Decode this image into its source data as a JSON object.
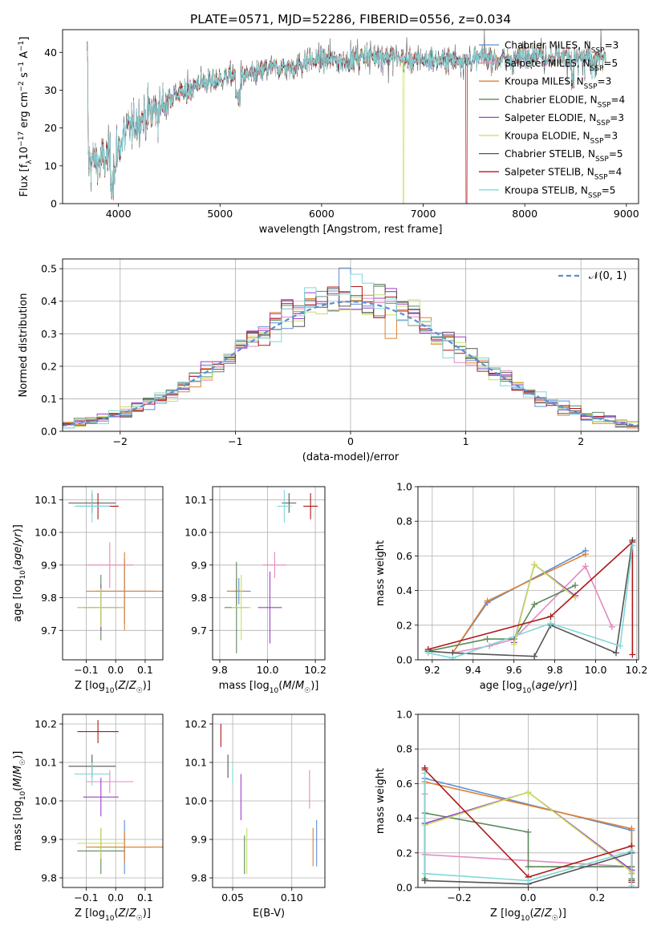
{
  "title": "PLATE=0571, MJD=52286, FIBERID=0556, z=0.034",
  "colors": {
    "chabrier_miles": "#5b8ed6",
    "salpeter_miles": "#e58ac0",
    "kroupa_miles": "#e08030",
    "chabrier_elodie": "#5a8a5a",
    "salpeter_elodie": "#9d3fc8",
    "kroupa_elodie": "#c8e060",
    "chabrier_stelib": "#555555",
    "salpeter_stelib": "#b01818",
    "kroupa_stelib": "#80d8d8",
    "gaussian": "#5b8ed6",
    "grid": "#b0b0b0"
  },
  "chart_data": [
    {
      "id": "spectrum",
      "type": "line",
      "title": "PLATE=0571, MJD=52286, FIBERID=0556, z=0.034",
      "xlabel": "wavelength [Angstrom, rest frame]",
      "ylabel": "Flux [f_λ10^-17 erg cm^-2 s^-1 A^-1]",
      "xlim": [
        3450,
        9120
      ],
      "ylim": [
        0,
        46
      ],
      "xticks": [
        4000,
        5000,
        6000,
        7000,
        8000,
        9000
      ],
      "yticks": [
        0,
        10,
        20,
        30,
        40
      ],
      "grid": false,
      "legend_position": "top-right",
      "legend": [
        {
          "label": "Chabrier MILES, N",
          "sub": "SSP",
          "suffix": "=3"
        },
        {
          "label": "Salpeter MILES, N",
          "sub": "SSP",
          "suffix": "=5"
        },
        {
          "label": "Kroupa MILES, N",
          "sub": "SSP",
          "suffix": "=3"
        },
        {
          "label": "Chabrier ELODIE, N",
          "sub": "SSP",
          "suffix": "=4"
        },
        {
          "label": "Salpeter ELODIE, N",
          "sub": "SSP",
          "suffix": "=3"
        },
        {
          "label": "Kroupa ELODIE, N",
          "sub": "SSP",
          "suffix": "=3"
        },
        {
          "label": "Chabrier STELIB, N",
          "sub": "SSP",
          "suffix": "=5"
        },
        {
          "label": "Salpeter STELIB, N",
          "sub": "SSP",
          "suffix": "=4"
        },
        {
          "label": "Kroupa STELIB, N",
          "sub": "SSP",
          "suffix": "=5"
        }
      ],
      "continuum": [
        [
          3700,
          12
        ],
        [
          3800,
          11
        ],
        [
          3900,
          12
        ],
        [
          4000,
          15
        ],
        [
          4100,
          20
        ],
        [
          4200,
          22
        ],
        [
          4300,
          24
        ],
        [
          4400,
          25
        ],
        [
          4500,
          28
        ],
        [
          4600,
          29
        ],
        [
          4700,
          30
        ],
        [
          4800,
          32
        ],
        [
          4900,
          32
        ],
        [
          5000,
          33
        ],
        [
          5100,
          34
        ],
        [
          5200,
          33
        ],
        [
          5300,
          34
        ],
        [
          5400,
          35
        ],
        [
          5500,
          36
        ],
        [
          5600,
          36
        ],
        [
          5700,
          36
        ],
        [
          5800,
          37
        ],
        [
          5900,
          38
        ],
        [
          6000,
          38
        ],
        [
          6100,
          38
        ],
        [
          6200,
          38
        ],
        [
          6300,
          38
        ],
        [
          6400,
          39
        ],
        [
          6500,
          39
        ],
        [
          6600,
          39
        ],
        [
          6700,
          39
        ],
        [
          6800,
          38
        ],
        [
          6900,
          38
        ],
        [
          7000,
          38
        ],
        [
          7100,
          38
        ],
        [
          7200,
          38
        ],
        [
          7300,
          38
        ],
        [
          7400,
          38
        ],
        [
          7500,
          38
        ],
        [
          7600,
          39
        ],
        [
          7700,
          38
        ],
        [
          7800,
          38
        ],
        [
          7900,
          38
        ],
        [
          8000,
          39
        ],
        [
          8100,
          40
        ],
        [
          8200,
          39
        ],
        [
          8300,
          39
        ],
        [
          8400,
          39
        ],
        [
          8500,
          39
        ],
        [
          8600,
          39
        ],
        [
          8700,
          38
        ],
        [
          8800,
          38
        ]
      ],
      "dropouts": [
        {
          "series": "Kroupa ELODIE",
          "at": 6800
        },
        {
          "series": "Salpeter STELIB",
          "at": 7420
        }
      ]
    },
    {
      "id": "residual-histogram",
      "type": "bar",
      "xlabel": "(data-model)/error",
      "ylabel": "Normed distribution",
      "xlim": [
        -2.5,
        2.5
      ],
      "ylim": [
        0,
        0.53
      ],
      "xticks": [
        -2,
        -1,
        0,
        1,
        2
      ],
      "yticks": [
        0.0,
        0.1,
        0.2,
        0.3,
        0.4,
        0.5
      ],
      "grid": true,
      "legend_position": "top-right",
      "legend": [
        "𝒩(0, 1)"
      ],
      "gaussian": {
        "mean": 0,
        "sigma": 1
      }
    },
    {
      "id": "age-vs-z",
      "type": "scatter",
      "xlabel": "Z [log10(Z/Z☉)]",
      "ylabel": "age  [log10(age/yr)]",
      "xlim": [
        -0.18,
        0.16
      ],
      "ylim": [
        9.61,
        10.14
      ],
      "xticks": [
        -0.1,
        0.0,
        0.1
      ],
      "yticks": [
        9.7,
        9.8,
        9.9,
        10.0,
        10.1
      ],
      "grid": true,
      "points": [
        {
          "series": "chabrier_miles",
          "x": 0.03,
          "xerr": 0.1,
          "y": 9.82,
          "yerr": 0.1
        },
        {
          "series": "salpeter_miles",
          "x": -0.02,
          "xerr": 0.08,
          "y": 9.9,
          "yerr": 0.07
        },
        {
          "series": "kroupa_miles",
          "x": 0.03,
          "xerr": 0.13,
          "y": 9.82,
          "yerr": 0.12
        },
        {
          "series": "chabrier_elodie",
          "x": -0.05,
          "xerr": 0.08,
          "y": 9.77,
          "yerr": 0.1
        },
        {
          "series": "salpeter_elodie",
          "x": -0.05,
          "xerr": 0.06,
          "y": 9.77,
          "yerr": 0.07
        },
        {
          "series": "kroupa_elodie",
          "x": -0.05,
          "xerr": 0.08,
          "y": 9.77,
          "yerr": 0.06
        },
        {
          "series": "chabrier_stelib",
          "x": -0.08,
          "xerr": 0.08,
          "y": 10.09,
          "yerr": 0.03
        },
        {
          "series": "salpeter_stelib",
          "x": -0.06,
          "xerr": 0.07,
          "y": 10.08,
          "yerr": 0.04
        },
        {
          "series": "kroupa_stelib",
          "x": -0.08,
          "xerr": 0.06,
          "y": 10.08,
          "yerr": 0.05
        }
      ]
    },
    {
      "id": "age-vs-mass",
      "type": "scatter",
      "xlabel": "mass [log10(M/M☉)]",
      "ylabel": "",
      "xlim": [
        9.77,
        10.24
      ],
      "ylim": [
        9.61,
        10.14
      ],
      "xticks": [
        9.8,
        10.0,
        10.2
      ],
      "yticks": [
        9.7,
        9.8,
        9.9,
        10.0,
        10.1
      ],
      "grid": true,
      "points": [
        {
          "series": "chabrier_miles",
          "x": 9.88,
          "xerr": 0.05,
          "y": 9.82,
          "yerr": 0.04
        },
        {
          "series": "salpeter_miles",
          "x": 10.03,
          "xerr": 0.05,
          "y": 9.9,
          "yerr": 0.04
        },
        {
          "series": "kroupa_miles",
          "x": 9.87,
          "xerr": 0.04,
          "y": 9.82,
          "yerr": 0.04
        },
        {
          "series": "chabrier_elodie",
          "x": 9.87,
          "xerr": 0.05,
          "y": 9.77,
          "yerr": 0.14
        },
        {
          "series": "salpeter_elodie",
          "x": 10.01,
          "xerr": 0.05,
          "y": 9.77,
          "yerr": 0.11
        },
        {
          "series": "kroupa_elodie",
          "x": 9.89,
          "xerr": 0.04,
          "y": 9.77,
          "yerr": 0.1
        },
        {
          "series": "chabrier_stelib",
          "x": 10.09,
          "xerr": 0.03,
          "y": 10.09,
          "yerr": 0.03
        },
        {
          "series": "salpeter_stelib",
          "x": 10.18,
          "xerr": 0.03,
          "y": 10.08,
          "yerr": 0.04
        },
        {
          "series": "kroupa_stelib",
          "x": 10.07,
          "xerr": 0.03,
          "y": 10.08,
          "yerr": 0.05
        }
      ]
    },
    {
      "id": "massweight-vs-age",
      "type": "line",
      "xlabel": "age  [log10(age/yr)]",
      "ylabel": "mass weight",
      "xlim": [
        9.13,
        10.21
      ],
      "ylim": [
        0,
        1
      ],
      "xticks": [
        9.2,
        9.4,
        9.6,
        9.8,
        10.0,
        10.2
      ],
      "yticks": [
        0.0,
        0.2,
        0.4,
        0.6,
        0.8,
        1.0
      ],
      "grid": true,
      "series": [
        {
          "name": "chabrier_miles",
          "x": [
            9.3,
            9.47,
            9.95
          ],
          "y": [
            0.04,
            0.33,
            0.63
          ]
        },
        {
          "name": "salpeter_miles",
          "x": [
            9.3,
            9.48,
            9.6,
            9.95,
            10.08
          ],
          "y": [
            0.04,
            0.08,
            0.12,
            0.54,
            0.19
          ]
        },
        {
          "name": "kroupa_miles",
          "x": [
            9.3,
            9.47,
            9.95
          ],
          "y": [
            0.04,
            0.34,
            0.61
          ]
        },
        {
          "name": "chabrier_elodie",
          "x": [
            9.18,
            9.47,
            9.6,
            9.7,
            9.9
          ],
          "y": [
            0.05,
            0.12,
            0.12,
            0.32,
            0.43
          ]
        },
        {
          "name": "salpeter_elodie",
          "x": [
            9.6,
            9.7,
            9.9
          ],
          "y": [
            0.1,
            0.55,
            0.37
          ]
        },
        {
          "name": "kroupa_elodie",
          "x": [
            9.6,
            9.7,
            9.9
          ],
          "y": [
            0.09,
            0.55,
            0.36
          ]
        },
        {
          "name": "chabrier_stelib",
          "x": [
            9.18,
            9.3,
            9.7,
            9.78,
            10.1,
            10.18
          ],
          "y": [
            0.05,
            0.04,
            0.02,
            0.2,
            0.04,
            0.69
          ]
        },
        {
          "name": "salpeter_stelib",
          "x": [
            9.18,
            9.78,
            10.18,
            10.18
          ],
          "y": [
            0.06,
            0.25,
            0.68,
            0.03
          ]
        },
        {
          "name": "kroupa_stelib",
          "x": [
            9.18,
            9.3,
            9.78,
            10.12,
            10.18
          ],
          "y": [
            0.04,
            0.01,
            0.21,
            0.08,
            0.66
          ]
        }
      ]
    },
    {
      "id": "mass-vs-z",
      "type": "scatter",
      "xlabel": "Z [log10(Z/Z☉)]",
      "ylabel": "mass [log10(M/M☉)]",
      "xlim": [
        -0.18,
        0.16
      ],
      "ylim": [
        9.775,
        10.225
      ],
      "xticks": [
        -0.1,
        0.0,
        0.1
      ],
      "yticks": [
        9.8,
        9.9,
        10.0,
        10.1,
        10.2
      ],
      "grid": true,
      "points": [
        {
          "series": "chabrier_miles",
          "x": 0.03,
          "xerr": 0.1,
          "y": 9.88,
          "yerr": 0.07
        },
        {
          "series": "salpeter_miles",
          "x": -0.02,
          "xerr": 0.08,
          "y": 10.05,
          "yerr": 0.03
        },
        {
          "series": "kroupa_miles",
          "x": 0.03,
          "xerr": 0.13,
          "y": 9.88,
          "yerr": 0.04
        },
        {
          "series": "chabrier_elodie",
          "x": -0.05,
          "xerr": 0.08,
          "y": 9.87,
          "yerr": 0.06
        },
        {
          "series": "salpeter_elodie",
          "x": -0.05,
          "xerr": 0.06,
          "y": 10.01,
          "yerr": 0.05
        },
        {
          "series": "kroupa_elodie",
          "x": -0.05,
          "xerr": 0.08,
          "y": 9.89,
          "yerr": 0.04
        },
        {
          "series": "chabrier_stelib",
          "x": -0.08,
          "xerr": 0.08,
          "y": 10.09,
          "yerr": 0.03
        },
        {
          "series": "salpeter_stelib",
          "x": -0.06,
          "xerr": 0.07,
          "y": 10.18,
          "yerr": 0.03
        },
        {
          "series": "kroupa_stelib",
          "x": -0.08,
          "xerr": 0.06,
          "y": 10.07,
          "yerr": 0.03
        }
      ]
    },
    {
      "id": "mass-vs-ebv",
      "type": "scatter",
      "xlabel": "E(B-V)",
      "ylabel": "",
      "xlim": [
        0.033,
        0.128
      ],
      "ylim": [
        9.775,
        10.225
      ],
      "xticks": [
        0.05,
        0.1
      ],
      "yticks": [
        9.8,
        9.9,
        10.0,
        10.1,
        10.2
      ],
      "grid": true,
      "points": [
        {
          "series": "chabrier_miles",
          "x": 0.121,
          "y": 9.89,
          "yerr": 0.06
        },
        {
          "series": "salpeter_miles",
          "x": 0.115,
          "y": 10.03,
          "yerr": 0.05
        },
        {
          "series": "kroupa_miles",
          "x": 0.118,
          "y": 9.88,
          "yerr": 0.05
        },
        {
          "series": "chabrier_elodie",
          "x": 0.06,
          "y": 9.86,
          "yerr": 0.05
        },
        {
          "series": "salpeter_elodie",
          "x": 0.057,
          "y": 10.01,
          "yerr": 0.06
        },
        {
          "series": "kroupa_elodie",
          "x": 0.062,
          "y": 9.87,
          "yerr": 0.06
        },
        {
          "series": "chabrier_stelib",
          "x": 0.046,
          "y": 10.09,
          "yerr": 0.03
        },
        {
          "series": "salpeter_stelib",
          "x": 0.04,
          "y": 10.17,
          "yerr": 0.03
        },
        {
          "series": "kroupa_stelib",
          "x": 0.05,
          "y": 10.07,
          "yerr": 0.03
        }
      ]
    },
    {
      "id": "massweight-vs-z",
      "type": "line",
      "xlabel": "Z [log10(Z/Z☉)]",
      "ylabel": "mass weight",
      "xlim": [
        -0.32,
        0.32
      ],
      "ylim": [
        0,
        1
      ],
      "xticks": [
        -0.2,
        0.0,
        0.2
      ],
      "yticks": [
        0.0,
        0.2,
        0.4,
        0.6,
        0.8,
        1.0
      ],
      "grid": true,
      "series": [
        {
          "name": "chabrier_miles",
          "x": [
            -0.3,
            -0.3,
            0.3,
            0.3
          ],
          "y": [
            0.04,
            0.63,
            0.33,
            0.04
          ]
        },
        {
          "name": "salpeter_miles",
          "x": [
            -0.3,
            -0.3,
            0.3,
            0.3
          ],
          "y": [
            0.54,
            0.19,
            0.12,
            0.08
          ]
        },
        {
          "name": "kroupa_miles",
          "x": [
            -0.3,
            -0.3,
            0.3,
            0.3
          ],
          "y": [
            0.04,
            0.61,
            0.34,
            0.04
          ]
        },
        {
          "name": "chabrier_elodie",
          "x": [
            -0.3,
            -0.3,
            0.0,
            0.0,
            0.3,
            0.3
          ],
          "y": [
            0.05,
            0.43,
            0.32,
            0.12,
            0.12,
            0.05
          ]
        },
        {
          "name": "salpeter_elodie",
          "x": [
            -0.3,
            0.0,
            0.3,
            0.3
          ],
          "y": [
            0.37,
            0.55,
            0.1,
            0.1
          ]
        },
        {
          "name": "kroupa_elodie",
          "x": [
            -0.3,
            0.0,
            0.3,
            0.3
          ],
          "y": [
            0.36,
            0.55,
            0.09,
            0.09
          ]
        },
        {
          "name": "chabrier_stelib",
          "x": [
            -0.3,
            0.0,
            0.3,
            0.3
          ],
          "y": [
            0.04,
            0.02,
            0.2,
            0.04
          ]
        },
        {
          "name": "salpeter_stelib",
          "x": [
            -0.3,
            -0.3,
            0.0,
            0.3,
            0.3
          ],
          "y": [
            0.69,
            0.68,
            0.06,
            0.24,
            0.03
          ]
        },
        {
          "name": "kroupa_stelib",
          "x": [
            -0.3,
            -0.3,
            0.0,
            0.3,
            0.3
          ],
          "y": [
            0.66,
            0.08,
            0.04,
            0.21,
            0.01
          ]
        }
      ]
    }
  ]
}
